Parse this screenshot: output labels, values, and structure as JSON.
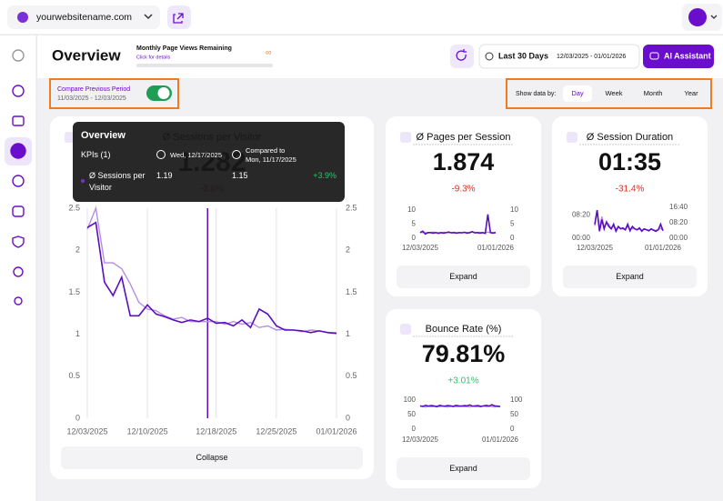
{
  "topbar": {
    "site": "yourwebsitename.com"
  },
  "header": {
    "title": "Overview",
    "page_views_label": "Monthly Page Views Remaining",
    "page_views_link": "Click for details",
    "page_views_value": "∞",
    "range_label": "Last 30 Days",
    "range_dates": "12/03/2025 - 01/01/2026",
    "assistant": "AI Assistant"
  },
  "compare": {
    "label": "Compare Previous Period",
    "dates": "11/03/2025 - 12/03/2025"
  },
  "show_data_by": {
    "label": "Show data by:",
    "options": [
      "Day",
      "Week",
      "Month",
      "Year"
    ]
  },
  "tooltip": {
    "title": "Overview",
    "kpis": "KPIs (1)",
    "date": "Wed, 12/17/2025",
    "compared_label": "Compared to",
    "compared_date": "Mon, 11/17/2025",
    "metric": "Ø Sessions per Visitor",
    "current": "1.19",
    "previous": "1.15",
    "change": "+3.9%"
  },
  "cards": [
    {
      "title": "Ø Sessions per Visitor",
      "value": "1.282",
      "change": "-3.6%",
      "button": "Collapse",
      "chart": {
        "type": "line",
        "grid_x": true,
        "categories": [
          "12/03/2025",
          null,
          null,
          null,
          null,
          null,
          null,
          "12/10/2025",
          null,
          null,
          null,
          null,
          null,
          null,
          null,
          "12/18/2025",
          null,
          null,
          null,
          null,
          null,
          null,
          "12/25/2025",
          null,
          null,
          null,
          null,
          null,
          null,
          "01/01/2026"
        ],
        "ylim": [
          0,
          2.5
        ],
        "yticks": [
          0,
          0.5,
          1,
          1.5,
          2,
          2.5
        ],
        "y2lim": [
          0,
          2.5
        ],
        "y2ticks": [
          0,
          0.5,
          1,
          1.5,
          2,
          2.5
        ],
        "series": [
          {
            "color": "#b48ee8",
            "axis": "y2",
            "values": [
              2.25,
              2.5,
              1.85,
              1.85,
              1.78,
              1.6,
              1.38,
              1.3,
              1.28,
              1.22,
              1.18,
              1.2,
              1.15,
              1.15,
              1.15,
              1.15,
              1.12,
              1.15,
              1.12,
              1.14,
              1.08,
              1.1,
              1.05,
              1.06,
              1.05,
              1.03,
              1.05,
              1.04,
              1.02,
              1.02
            ]
          },
          {
            "color": "#5b0fbf",
            "values": [
              2.27,
              2.33,
              1.62,
              1.46,
              1.68,
              1.22,
              1.22,
              1.35,
              1.24,
              1.21,
              1.17,
              1.14,
              1.17,
              1.15,
              1.19,
              1.13,
              1.14,
              1.1,
              1.17,
              1.08,
              1.3,
              1.24,
              1.1,
              1.05,
              1.05,
              1.04,
              1.02,
              1.04,
              1.02,
              1.01
            ]
          }
        ]
      }
    },
    {
      "title": "Ø Pages per Session",
      "value": "1.874",
      "change": "-9.3%",
      "button": "Expand",
      "chart": {
        "type": "line",
        "categories": [
          "12/03/2025",
          null,
          null,
          null,
          null,
          null,
          null,
          null,
          null,
          null,
          null,
          null,
          null,
          null,
          null,
          null,
          null,
          null,
          null,
          null,
          null,
          null,
          null,
          null,
          null,
          null,
          null,
          null,
          null,
          "01/01/2026"
        ],
        "ylim": [
          0,
          11
        ],
        "yticks": [
          0,
          5,
          10
        ],
        "y2lim": [
          0,
          11
        ],
        "y2ticks": [
          0,
          5,
          10
        ],
        "series": [
          {
            "color": "#b48ee8",
            "axis": "y2",
            "values": [
              2.1,
              2,
              2,
              1.9,
              2,
              2.2,
              2,
              2,
              1.9,
              2.1,
              2,
              2,
              2,
              2.1,
              1.9,
              2,
              2,
              2.1,
              2,
              1.9,
              2.4,
              2,
              2,
              2.1,
              1.9,
              2,
              2.2,
              2,
              2,
              2.1
            ]
          },
          {
            "color": "#5b0fbf",
            "values": [
              2,
              2.5,
              1.5,
              2,
              2,
              1.8,
              2,
              1.7,
              2,
              1.8,
              2,
              2.2,
              1.9,
              2,
              1.8,
              2,
              1.9,
              2.1,
              1.8,
              2,
              2.3,
              1.9,
              2,
              1.8,
              2,
              1.7,
              8.5,
              2,
              1.8,
              2
            ]
          }
        ]
      }
    },
    {
      "title": "Ø Session Duration",
      "value": "01:35",
      "change": "-31.4%",
      "button": "Expand",
      "chart": {
        "type": "line",
        "categories": [
          "12/03/2025",
          null,
          null,
          null,
          null,
          null,
          null,
          null,
          null,
          null,
          null,
          null,
          null,
          null,
          null,
          null,
          null,
          null,
          null,
          null,
          null,
          null,
          null,
          null,
          null,
          null,
          null,
          null,
          null,
          "01/01/2026"
        ],
        "ylim": [
          0,
          700
        ],
        "yticks": [
          {
            "value": 0,
            "label": "00:00"
          },
          {
            "value": 500,
            "label": "08:20"
          }
        ],
        "y2lim": [
          0,
          1060
        ],
        "y2ticks": [
          {
            "value": 0,
            "label": "00:00"
          },
          {
            "value": 500,
            "label": "08:20"
          },
          {
            "value": 1000,
            "label": "16:40"
          }
        ],
        "series": [
          {
            "color": "#b48ee8",
            "axis": "y2",
            "values": [
              400,
              900,
              300,
              700,
              350,
              500,
              450,
              300,
              400,
              300,
              350,
              320,
              300,
              280,
              380,
              300,
              320,
              300,
              280,
              300,
              260,
              300,
              280,
              260,
              300,
              270,
              250,
              280,
              320,
              260
            ]
          },
          {
            "color": "#5b0fbf",
            "values": [
              300,
              600,
              150,
              400,
              200,
              350,
              250,
              200,
              300,
              150,
              250,
              200,
              220,
              180,
              300,
              160,
              250,
              200,
              180,
              220,
              150,
              200,
              180,
              160,
              200,
              170,
              150,
              180,
              300,
              160
            ]
          }
        ]
      }
    },
    {
      "title": "Bounce Rate (%)",
      "value": "79.81%",
      "change": "+3.01%",
      "button": "Expand",
      "chart": {
        "type": "line",
        "categories": [
          "12/03/2025",
          null,
          null,
          null,
          null,
          null,
          null,
          null,
          null,
          null,
          null,
          null,
          null,
          null,
          null,
          null,
          null,
          null,
          null,
          null,
          null,
          null,
          null,
          null,
          null,
          null,
          null,
          null,
          null,
          "01/01/2026"
        ],
        "ylim": [
          0,
          100
        ],
        "yticks": [
          0,
          50,
          100
        ],
        "y2lim": [
          0,
          100
        ],
        "y2ticks": [
          0,
          50,
          100
        ],
        "series": [
          {
            "color": "#b48ee8",
            "axis": "y2",
            "values": [
              78,
              80,
              76,
              79,
              77,
              78,
              80,
              77,
              79,
              78,
              76,
              78,
              79,
              77,
              78,
              80,
              77,
              78,
              76,
              79,
              78,
              77,
              78,
              80,
              77,
              79,
              78,
              76,
              78,
              77
            ]
          },
          {
            "color": "#5b0fbf",
            "values": [
              80,
              78,
              82,
              79,
              81,
              80,
              77,
              82,
              80,
              79,
              81,
              80,
              78,
              82,
              80,
              79,
              81,
              80,
              83,
              79,
              80,
              81,
              78,
              80,
              82,
              79,
              84,
              80,
              79,
              78
            ]
          }
        ]
      }
    }
  ]
}
